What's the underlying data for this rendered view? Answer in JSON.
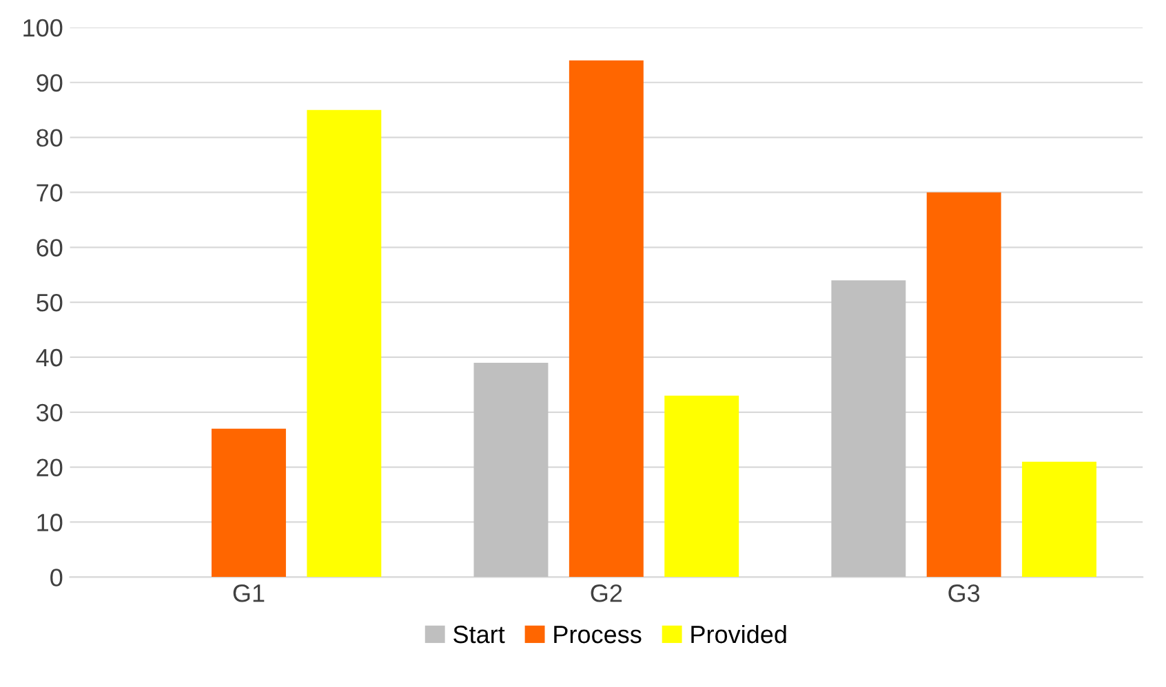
{
  "chart_data": {
    "type": "bar",
    "categories": [
      "G1",
      "G2",
      "G3"
    ],
    "series": [
      {
        "name": "Start",
        "color": "#bfbfbf",
        "values": [
          0,
          39,
          54
        ]
      },
      {
        "name": "Process",
        "color": "#ff6600",
        "values": [
          27,
          94,
          70
        ]
      },
      {
        "name": "Provided",
        "color": "#ffff00",
        "values": [
          85,
          33,
          21
        ]
      }
    ],
    "ylim": [
      0,
      100
    ],
    "yticks": [
      0,
      10,
      20,
      30,
      40,
      50,
      60,
      70,
      80,
      90,
      100
    ],
    "grid": "y",
    "legend": "bottom"
  }
}
